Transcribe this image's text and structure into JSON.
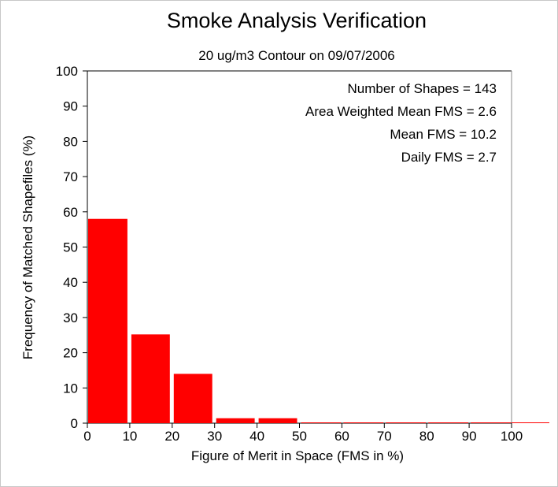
{
  "chart_data": {
    "type": "bar",
    "title": "Smoke Analysis Verification",
    "subtitle": "20 ug/m3 Contour on 09/07/2006",
    "xlabel": "Figure of Merit in Space (FMS in %)",
    "ylabel": "Frequency of Matched Shapefiles (%)",
    "xlim": [
      0,
      100
    ],
    "ylim": [
      0,
      100
    ],
    "xticks": [
      "0",
      "10",
      "20",
      "30",
      "40",
      "50",
      "60",
      "70",
      "80",
      "90",
      "100"
    ],
    "yticks": [
      "0",
      "10",
      "20",
      "30",
      "40",
      "50",
      "60",
      "70",
      "80",
      "90",
      "100"
    ],
    "grid": false,
    "bin_width": 10,
    "bins": [
      {
        "start": 0,
        "end": 10,
        "value": 58.0
      },
      {
        "start": 10,
        "end": 20,
        "value": 25.2
      },
      {
        "start": 20,
        "end": 30,
        "value": 14.0
      },
      {
        "start": 30,
        "end": 40,
        "value": 1.4
      },
      {
        "start": 40,
        "end": 50,
        "value": 1.4
      },
      {
        "start": 50,
        "end": 60,
        "value": 0
      },
      {
        "start": 60,
        "end": 70,
        "value": 0
      },
      {
        "start": 70,
        "end": 80,
        "value": 0
      },
      {
        "start": 80,
        "end": 90,
        "value": 0
      },
      {
        "start": 90,
        "end": 100,
        "value": 0
      }
    ],
    "bar_color": "#ff0000",
    "annotations": [
      "Number of Shapes = 143",
      "Area Weighted Mean FMS = 2.6",
      "Mean FMS = 10.2",
      "Daily FMS = 2.7"
    ]
  }
}
